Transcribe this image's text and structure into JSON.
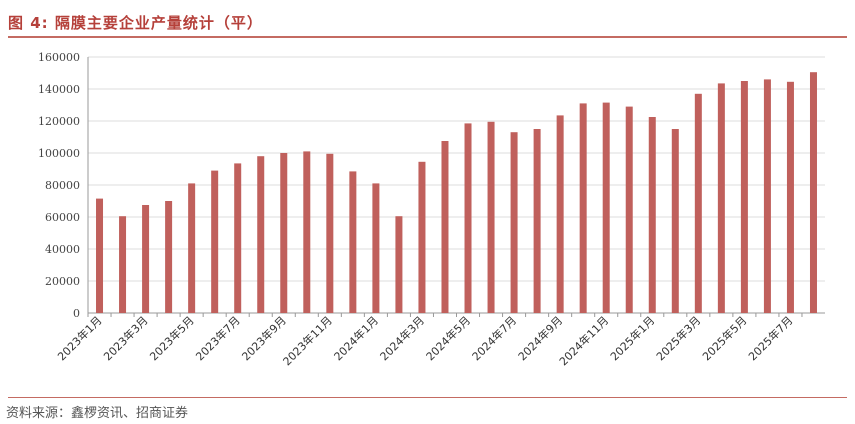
{
  "title": "图 4:  隔膜主要企业产量统计（平）",
  "source": "资料来源：鑫椤资讯、招商证券",
  "colors": {
    "bar": "#c0605c",
    "accent": "#b5403a",
    "axis": "#999999",
    "grid": "#dddddd"
  },
  "chart_data": {
    "type": "bar",
    "categories": [
      "2023年1月",
      "2023年2月",
      "2023年3月",
      "2023年4月",
      "2023年5月",
      "2023年6月",
      "2023年7月",
      "2023年8月",
      "2023年9月",
      "2023年10月",
      "2023年11月",
      "2023年12月",
      "2024年1月",
      "2024年2月",
      "2024年3月",
      "2024年4月",
      "2024年5月",
      "2024年6月",
      "2024年7月",
      "2024年8月",
      "2024年9月",
      "2024年10月",
      "2024年11月",
      "2024年12月",
      "2025年1月",
      "2025年2月",
      "2025年3月",
      "2025年4月",
      "2025年5月",
      "2025年6月",
      "2025年7月",
      "2025年8月"
    ],
    "tick_labels_shown": [
      "2023年1月",
      "2023年3月",
      "2023年5月",
      "2023年7月",
      "2023年9月",
      "2023年11月",
      "2024年1月",
      "2024年3月",
      "2024年5月",
      "2024年7月",
      "2024年9月",
      "2024年11月",
      "2025年1月",
      "2025年3月",
      "2025年5月",
      "2025年7月"
    ],
    "values": [
      71500,
      60500,
      67500,
      70000,
      81000,
      89000,
      93500,
      98000,
      100000,
      101000,
      99500,
      88500,
      81000,
      60500,
      94500,
      107500,
      118500,
      119500,
      113000,
      115000,
      123500,
      131000,
      131500,
      129000,
      122500,
      115000,
      137000,
      143500,
      145000,
      146000,
      144500,
      150500
    ],
    "ylim": [
      0,
      160000
    ],
    "yticks": [
      0,
      20000,
      40000,
      60000,
      80000,
      100000,
      120000,
      140000,
      160000
    ],
    "grid": true,
    "xlabel": "",
    "ylabel": ""
  }
}
